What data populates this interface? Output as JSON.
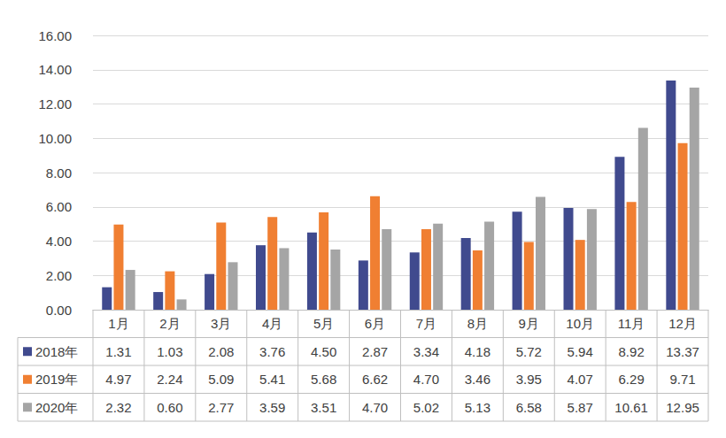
{
  "chart_data": {
    "type": "bar",
    "categories": [
      "1月",
      "2月",
      "3月",
      "4月",
      "5月",
      "6月",
      "7月",
      "8月",
      "9月",
      "10月",
      "11月",
      "12月"
    ],
    "series": [
      {
        "name": "2018年",
        "color": "#404a8e",
        "values": [
          1.31,
          1.03,
          2.08,
          3.76,
          4.5,
          2.87,
          3.34,
          4.18,
          5.72,
          5.94,
          8.92,
          13.37
        ],
        "value_labels": [
          "1.31",
          "1.03",
          "2.08",
          "3.76",
          "4.50",
          "2.87",
          "3.34",
          "4.18",
          "5.72",
          "5.94",
          "8.92",
          "13.37"
        ]
      },
      {
        "name": "2019年",
        "color": "#f07f32",
        "values": [
          4.97,
          2.24,
          5.09,
          5.41,
          5.68,
          6.62,
          4.7,
          3.46,
          3.95,
          4.07,
          6.29,
          9.71
        ],
        "value_labels": [
          "4.97",
          "2.24",
          "5.09",
          "5.41",
          "5.68",
          "6.62",
          "4.70",
          "3.46",
          "3.95",
          "4.07",
          "6.29",
          "9.71"
        ]
      },
      {
        "name": "2020年",
        "color": "#a5a5a5",
        "values": [
          2.32,
          0.6,
          2.77,
          3.59,
          3.51,
          4.7,
          5.02,
          5.13,
          6.58,
          5.87,
          10.61,
          12.95
        ],
        "value_labels": [
          "2.32",
          "0.60",
          "2.77",
          "3.59",
          "3.51",
          "4.70",
          "5.02",
          "5.13",
          "6.58",
          "5.87",
          "10.61",
          "12.95"
        ]
      }
    ],
    "ylim": [
      0,
      16
    ],
    "yticks": [
      {
        "value": 0,
        "label": "0.00"
      },
      {
        "value": 2,
        "label": "2.00"
      },
      {
        "value": 4,
        "label": "4.00"
      },
      {
        "value": 6,
        "label": "6.00"
      },
      {
        "value": 8,
        "label": "8.00"
      },
      {
        "value": 10,
        "label": "10.00"
      },
      {
        "value": 12,
        "label": "12.00"
      },
      {
        "value": 14,
        "label": "14.00"
      },
      {
        "value": 16,
        "label": "16.00"
      }
    ],
    "grid": true
  }
}
